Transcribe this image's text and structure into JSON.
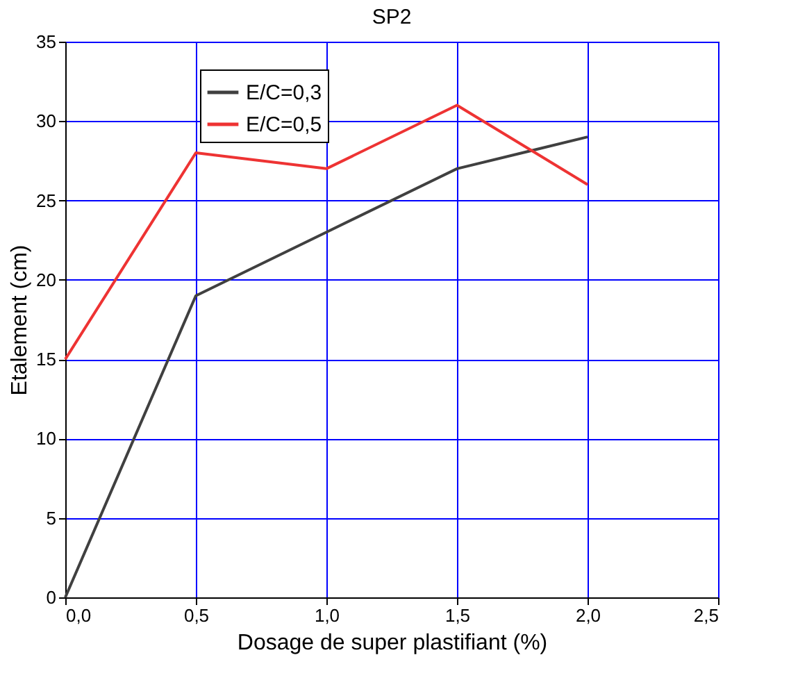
{
  "chart_data": {
    "type": "line",
    "title": "SP2",
    "xlabel": "Dosage de super plastifiant (%)",
    "ylabel": "Etalement (cm)",
    "x": [
      0,
      0.5,
      1.0,
      1.5,
      2.0
    ],
    "series": [
      {
        "name": "E/C=0,3",
        "color": "#404040",
        "values": [
          0,
          19,
          23,
          27,
          29
        ]
      },
      {
        "name": "E/C=0,5",
        "color": "#ee3333",
        "values": [
          15,
          28,
          27,
          31,
          26
        ]
      }
    ],
    "xlim": [
      0,
      2.5
    ],
    "xticks": [
      {
        "value": 0,
        "label": "0,0"
      },
      {
        "value": 0.5,
        "label": "0,5"
      },
      {
        "value": 1.0,
        "label": "1,0"
      },
      {
        "value": 1.5,
        "label": "1,5"
      },
      {
        "value": 2.0,
        "label": "2,0"
      },
      {
        "value": 2.5,
        "label": "2,5"
      }
    ],
    "ylim": [
      0,
      35
    ],
    "yticks": [
      0,
      5,
      10,
      15,
      20,
      25,
      30,
      35
    ],
    "grid": true,
    "legend": "top left",
    "marker": "none",
    "line_style": "solid"
  }
}
